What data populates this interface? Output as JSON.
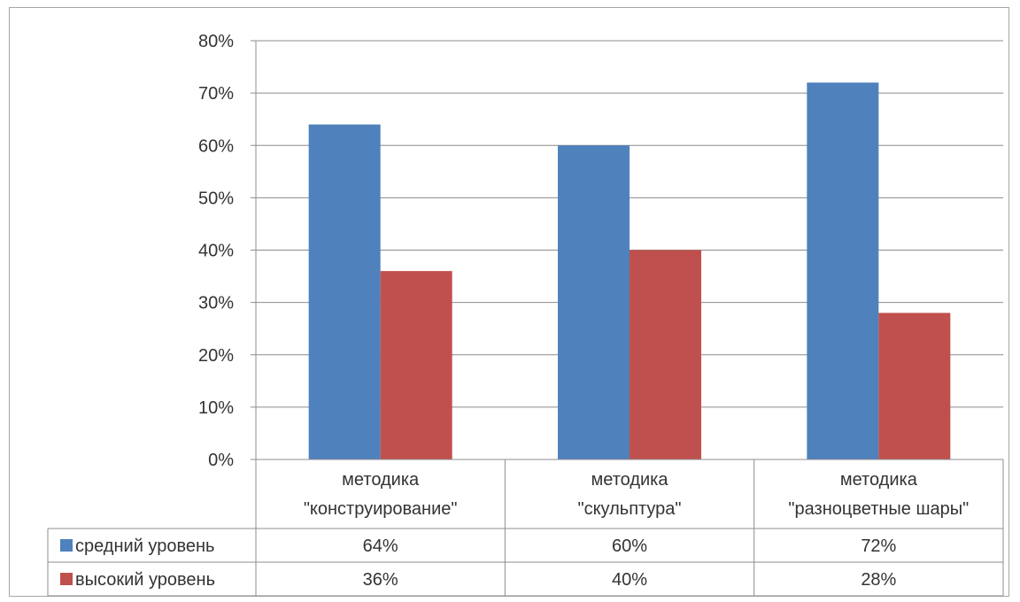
{
  "chart_data": {
    "type": "bar",
    "title": "",
    "xlabel": "",
    "ylabel": "",
    "ylim": [
      0,
      80
    ],
    "y_ticks": [
      "0%",
      "10%",
      "20%",
      "30%",
      "40%",
      "50%",
      "60%",
      "70%",
      "80%"
    ],
    "grid": true,
    "legend": "data-table",
    "categories": [
      [
        "методика",
        "\"конструирование\""
      ],
      [
        "методика",
        "\"скульптура\""
      ],
      [
        "методика",
        "\"разноцветные шары\""
      ]
    ],
    "series": [
      {
        "name": "средний уровень",
        "color": "#4f81bd",
        "values": [
          64,
          60,
          72
        ],
        "labels": [
          "64%",
          "60%",
          "72%"
        ]
      },
      {
        "name": "высокий уровень",
        "color": "#c0504d",
        "values": [
          36,
          40,
          28
        ],
        "labels": [
          "36%",
          "40%",
          "28%"
        ]
      }
    ]
  }
}
